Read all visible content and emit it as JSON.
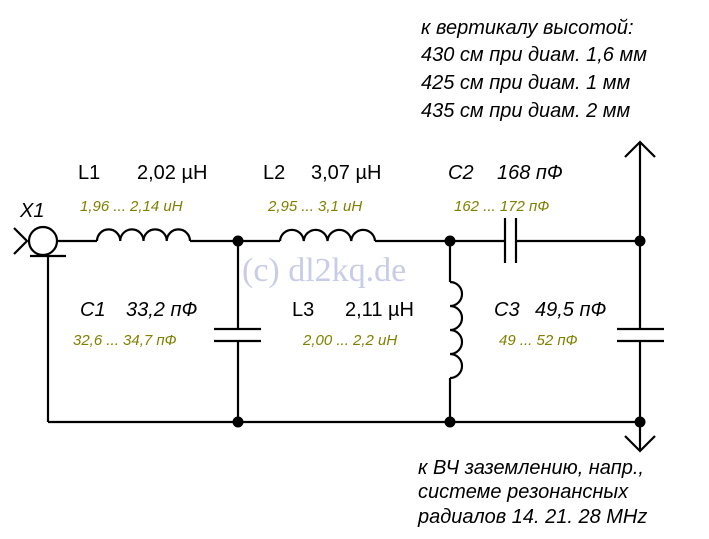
{
  "top_note": [
    "к  вертикалу высотой:",
    "430 см при диам. 1,6 мм",
    "425 см при диам. 1  мм",
    "435 см при диам. 2  мм"
  ],
  "bottom_note": [
    "к ВЧ заземлению, напр.,",
    "системе резонансных",
    "радиалов 14. 21. 28 MHz"
  ],
  "watermark": "(c) dl2kq.de",
  "components": {
    "x1": {
      "name": "X1"
    },
    "l1": {
      "name": "L1",
      "value": "2,02 µH",
      "range": "1,96 ... 2,14 uH"
    },
    "l2": {
      "name": "L2",
      "value": "3,07 µH",
      "range": "2,95 ... 3,1 uH"
    },
    "l3": {
      "name": "L3",
      "value": "2,11 µH",
      "range": "2,00 ... 2,2 uH"
    },
    "c1": {
      "name": "C1",
      "value": "33,2 пФ",
      "range": "32,6 ... 34,7 пФ"
    },
    "c2": {
      "name": "C2",
      "value": "168 пФ",
      "range": "162 ... 172 пФ"
    },
    "c3": {
      "name": "C3",
      "value": "49,5 пФ",
      "range": "49 ... 52 пФ"
    }
  },
  "colors": {
    "tolerance_text": "#808000",
    "watermark": "#c8cce8"
  }
}
